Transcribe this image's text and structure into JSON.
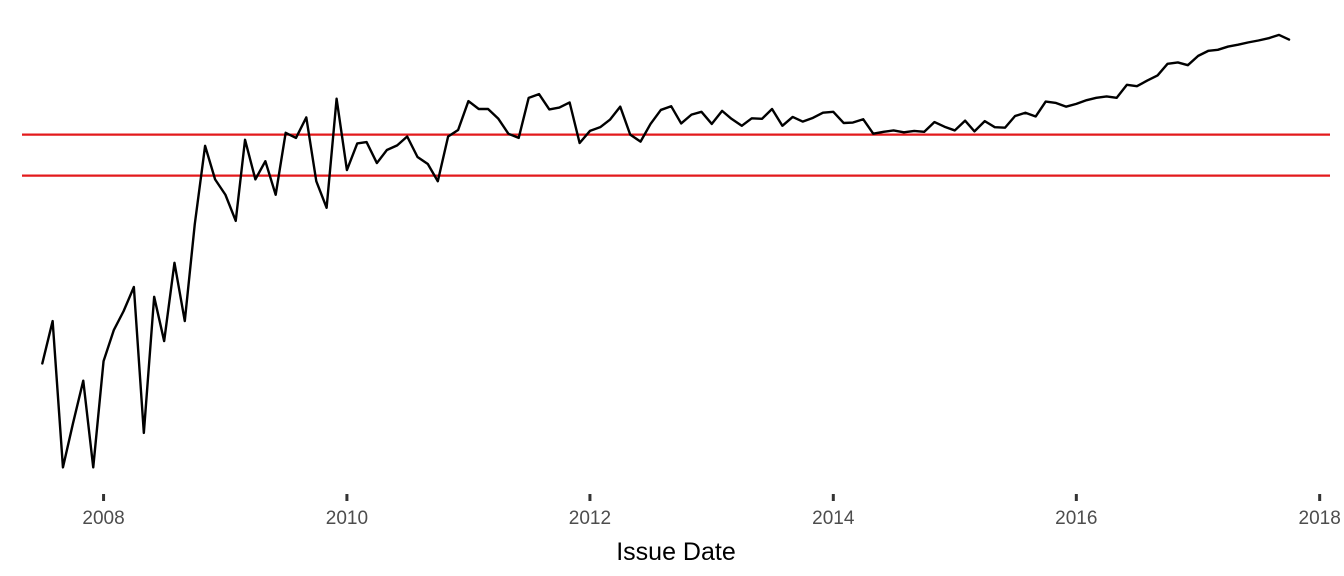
{
  "chart_data": {
    "type": "line",
    "title": "",
    "xlabel": "Issue Date",
    "ylabel": "",
    "x_axis_type": "date",
    "xlim": [
      "2007-05-01",
      "2018-02-01"
    ],
    "ylim": [
      0,
      100
    ],
    "x_ticks": [
      {
        "value": "2008-01-01",
        "label": "2008"
      },
      {
        "value": "2010-01-01",
        "label": "2010"
      },
      {
        "value": "2012-01-01",
        "label": "2012"
      },
      {
        "value": "2014-01-01",
        "label": "2014"
      },
      {
        "value": "2016-01-01",
        "label": "2016"
      },
      {
        "value": "2018-01-01",
        "label": "2018"
      }
    ],
    "y_ticks_shown": false,
    "grid": false,
    "legend": "none",
    "series": [
      {
        "color": "#000000",
        "points": [
          [
            "2007-07-01",
            26.3
          ],
          [
            "2007-08-01",
            35.4
          ],
          [
            "2007-09-01",
            4.0
          ],
          [
            "2007-10-01",
            13.4
          ],
          [
            "2007-11-01",
            22.6
          ],
          [
            "2007-12-01",
            4.0
          ],
          [
            "2008-01-01",
            26.8
          ],
          [
            "2008-02-01",
            33.5
          ],
          [
            "2008-03-01",
            37.5
          ],
          [
            "2008-04-01",
            42.7
          ],
          [
            "2008-05-01",
            11.4
          ],
          [
            "2008-06-01",
            40.6
          ],
          [
            "2008-07-01",
            31.1
          ],
          [
            "2008-08-01",
            47.9
          ],
          [
            "2008-09-01",
            35.4
          ],
          [
            "2008-10-01",
            56.2
          ],
          [
            "2008-11-01",
            73.0
          ],
          [
            "2008-12-01",
            65.8
          ],
          [
            "2009-01-01",
            62.5
          ],
          [
            "2009-02-01",
            56.9
          ],
          [
            "2009-03-01",
            74.3
          ],
          [
            "2009-04-01",
            65.8
          ],
          [
            "2009-05-01",
            69.7
          ],
          [
            "2009-06-01",
            62.5
          ],
          [
            "2009-07-01",
            75.8
          ],
          [
            "2009-08-01",
            74.7
          ],
          [
            "2009-09-01",
            79.1
          ],
          [
            "2009-10-01",
            65.4
          ],
          [
            "2009-11-01",
            59.7
          ],
          [
            "2009-12-01",
            83.1
          ],
          [
            "2010-01-01",
            67.8
          ],
          [
            "2010-02-01",
            73.5
          ],
          [
            "2010-03-01",
            73.8
          ],
          [
            "2010-04-01",
            69.3
          ],
          [
            "2010-05-01",
            72.1
          ],
          [
            "2010-06-01",
            73.1
          ],
          [
            "2010-07-01",
            75.0
          ],
          [
            "2010-08-01",
            70.6
          ],
          [
            "2010-09-01",
            69.1
          ],
          [
            "2010-10-01",
            65.4
          ],
          [
            "2010-11-01",
            75.0
          ],
          [
            "2010-12-01",
            76.4
          ],
          [
            "2011-01-01",
            82.6
          ],
          [
            "2011-02-01",
            80.9
          ],
          [
            "2011-03-01",
            80.9
          ],
          [
            "2011-04-01",
            78.8
          ],
          [
            "2011-05-01",
            75.6
          ],
          [
            "2011-06-01",
            74.7
          ],
          [
            "2011-07-01",
            83.3
          ],
          [
            "2011-08-01",
            84.1
          ],
          [
            "2011-09-01",
            80.8
          ],
          [
            "2011-10-01",
            81.2
          ],
          [
            "2011-11-01",
            82.3
          ],
          [
            "2011-12-01",
            73.6
          ],
          [
            "2012-01-01",
            76.2
          ],
          [
            "2012-02-01",
            77.0
          ],
          [
            "2012-03-01",
            78.6
          ],
          [
            "2012-04-01",
            81.4
          ],
          [
            "2012-05-01",
            75.4
          ],
          [
            "2012-06-01",
            73.9
          ],
          [
            "2012-07-01",
            77.7
          ],
          [
            "2012-08-01",
            80.7
          ],
          [
            "2012-09-01",
            81.5
          ],
          [
            "2012-10-01",
            77.8
          ],
          [
            "2012-11-01",
            79.7
          ],
          [
            "2012-12-01",
            80.3
          ],
          [
            "2013-01-01",
            77.7
          ],
          [
            "2013-02-01",
            80.5
          ],
          [
            "2013-03-01",
            78.8
          ],
          [
            "2013-04-01",
            77.3
          ],
          [
            "2013-05-01",
            78.9
          ],
          [
            "2013-06-01",
            78.8
          ],
          [
            "2013-07-01",
            80.9
          ],
          [
            "2013-08-01",
            77.3
          ],
          [
            "2013-09-01",
            79.2
          ],
          [
            "2013-10-01",
            78.2
          ],
          [
            "2013-11-01",
            79.0
          ],
          [
            "2013-12-01",
            80.1
          ],
          [
            "2014-01-01",
            80.3
          ],
          [
            "2014-02-01",
            77.9
          ],
          [
            "2014-03-01",
            78.0
          ],
          [
            "2014-04-01",
            78.7
          ],
          [
            "2014-05-01",
            75.6
          ],
          [
            "2014-06-01",
            76.0
          ],
          [
            "2014-07-01",
            76.3
          ],
          [
            "2014-08-01",
            75.9
          ],
          [
            "2014-09-01",
            76.2
          ],
          [
            "2014-10-01",
            76.0
          ],
          [
            "2014-11-01",
            78.1
          ],
          [
            "2014-12-01",
            77.1
          ],
          [
            "2015-01-01",
            76.3
          ],
          [
            "2015-02-01",
            78.4
          ],
          [
            "2015-03-01",
            76.1
          ],
          [
            "2015-04-01",
            78.3
          ],
          [
            "2015-05-01",
            77.0
          ],
          [
            "2015-06-01",
            76.9
          ],
          [
            "2015-07-01",
            79.4
          ],
          [
            "2015-08-01",
            80.1
          ],
          [
            "2015-09-01",
            79.3
          ],
          [
            "2015-10-01",
            82.5
          ],
          [
            "2015-11-01",
            82.2
          ],
          [
            "2015-12-01",
            81.4
          ],
          [
            "2016-01-01",
            82.0
          ],
          [
            "2016-02-01",
            82.8
          ],
          [
            "2016-03-01",
            83.3
          ],
          [
            "2016-04-01",
            83.6
          ],
          [
            "2016-05-01",
            83.3
          ],
          [
            "2016-06-01",
            86.1
          ],
          [
            "2016-07-01",
            85.8
          ],
          [
            "2016-08-01",
            87.0
          ],
          [
            "2016-09-01",
            88.1
          ],
          [
            "2016-10-01",
            90.6
          ],
          [
            "2016-11-01",
            90.9
          ],
          [
            "2016-12-01",
            90.3
          ],
          [
            "2017-01-01",
            92.3
          ],
          [
            "2017-02-01",
            93.4
          ],
          [
            "2017-03-01",
            93.6
          ],
          [
            "2017-04-01",
            94.3
          ],
          [
            "2017-05-01",
            94.7
          ],
          [
            "2017-06-01",
            95.2
          ],
          [
            "2017-07-01",
            95.6
          ],
          [
            "2017-08-01",
            96.1
          ],
          [
            "2017-09-01",
            96.8
          ],
          [
            "2017-10-01",
            95.8
          ]
        ]
      }
    ],
    "reference_lines": [
      {
        "orientation": "horizontal",
        "value": 75.4,
        "color": "#e31a1c"
      },
      {
        "orientation": "horizontal",
        "value": 66.6,
        "color": "#e31a1c"
      }
    ]
  }
}
